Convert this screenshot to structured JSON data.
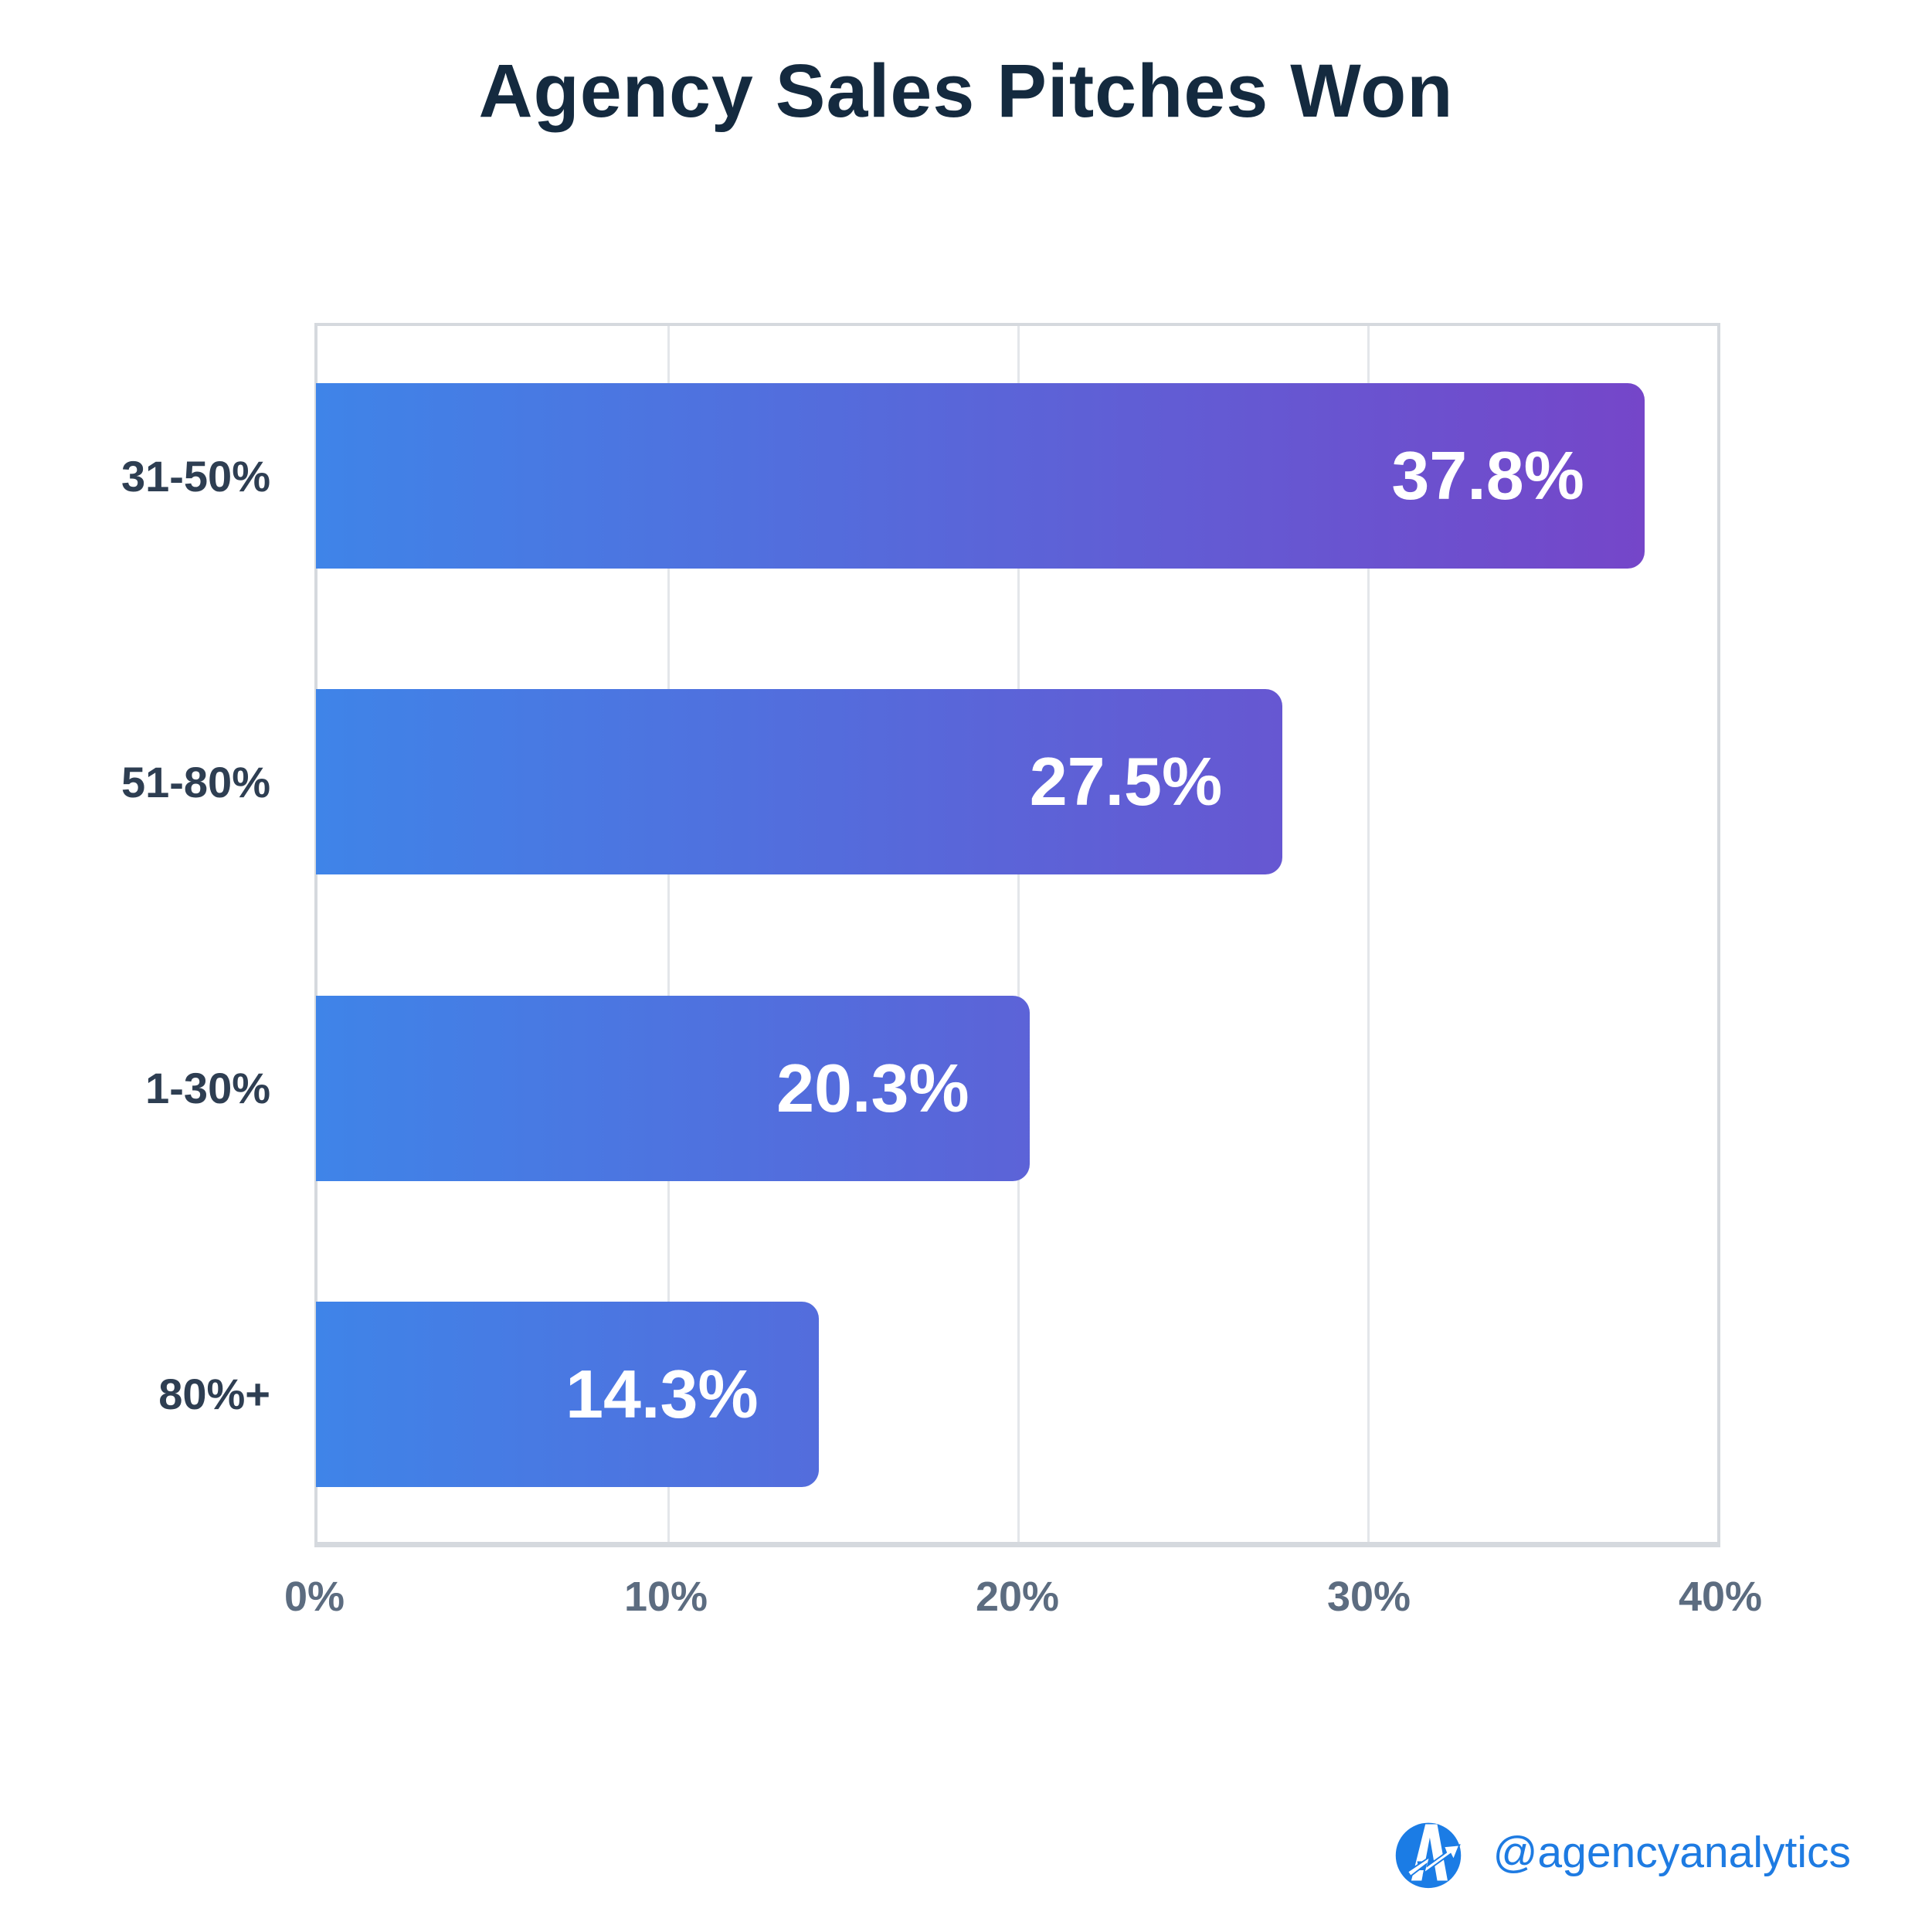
{
  "title": "Agency Sales Pitches Won",
  "chart_data": {
    "type": "bar",
    "orientation": "horizontal",
    "title": "Agency Sales Pitches Won",
    "categories": [
      "31-50%",
      "51-80%",
      "1-30%",
      "80%+"
    ],
    "values": [
      37.8,
      27.5,
      20.3,
      14.3
    ],
    "value_labels": [
      "37.8%",
      "27.5%",
      "20.3%",
      "14.3%"
    ],
    "xlabel": "",
    "ylabel": "",
    "xlim": [
      0,
      40
    ],
    "x_ticks": [
      {
        "value": 0,
        "label": "0%"
      },
      {
        "value": 10,
        "label": "10%"
      },
      {
        "value": 20,
        "label": "20%"
      },
      {
        "value": 30,
        "label": "30%"
      },
      {
        "value": 40,
        "label": "40%"
      }
    ],
    "grid": true,
    "legend": false,
    "bar_gradient_start": "#3F84E8",
    "bar_gradient_end": "#7546C9"
  },
  "colors": {
    "background": "#FFFFFF",
    "title": "#142A3F",
    "category_label": "#2E3E52",
    "tick_label": "#5C6C80",
    "value_label": "#FFFFFF",
    "gridline": "#E3E6EA",
    "plot_border": "#D5D9DE",
    "brand_blue": "#1E7BE2"
  },
  "footer": {
    "handle": "@agencyanalytics",
    "logo": "agencyanalytics-logo"
  }
}
